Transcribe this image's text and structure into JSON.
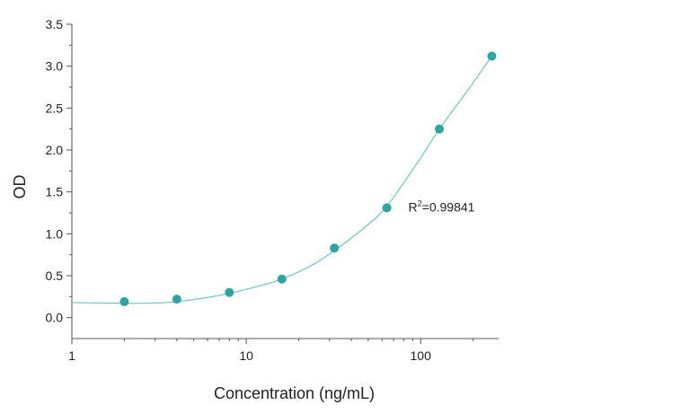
{
  "chart_data": {
    "type": "scatter",
    "xlabel": "Concentration (ng/mL)",
    "ylabel": "OD",
    "xscale": "log",
    "xlim": [
      1,
      280
    ],
    "ylim": [
      -0.25,
      3.5
    ],
    "xticks": [
      1,
      10,
      100
    ],
    "xtick_labels": [
      "1",
      "10",
      "100"
    ],
    "yticks": [
      0,
      0.5,
      1,
      1.5,
      2,
      2.5,
      3,
      3.5
    ],
    "ytick_labels": [
      "0.0",
      "0.5",
      "1.0",
      "1.5",
      "2.0",
      "2.5",
      "3.0",
      "3.5"
    ],
    "grid": false,
    "legend": "none",
    "marker_color": "#2fa3a0",
    "curve_color": "#6fc6c3",
    "points": {
      "x": [
        2,
        4,
        8,
        16,
        32,
        64,
        128,
        256
      ],
      "y": [
        0.19,
        0.22,
        0.3,
        0.46,
        0.83,
        1.31,
        2.25,
        3.12
      ]
    },
    "fit_curve": {
      "x": [
        1,
        2,
        3,
        4,
        6,
        8,
        12,
        16,
        24,
        32,
        48,
        64,
        96,
        128,
        192,
        256
      ],
      "y": [
        0.18,
        0.17,
        0.175,
        0.19,
        0.24,
        0.29,
        0.38,
        0.46,
        0.63,
        0.8,
        1.08,
        1.33,
        1.85,
        2.25,
        2.75,
        3.12
      ]
    },
    "annotation": {
      "text_prefix": "R",
      "text_sup": "2",
      "text_suffix": "=0.99841",
      "x": 85,
      "y": 1.32
    }
  }
}
